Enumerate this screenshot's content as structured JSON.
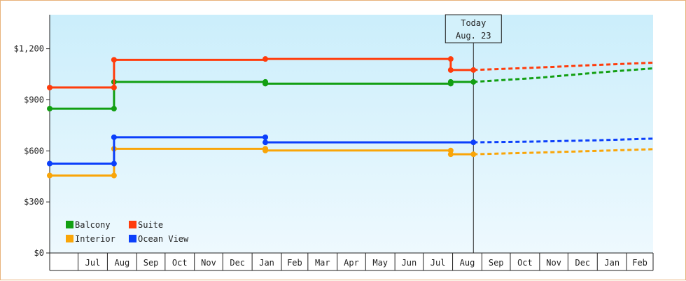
{
  "chart_data": {
    "type": "line",
    "title": "",
    "xlabel": "",
    "ylabel": "",
    "ylim": [
      0,
      1400
    ],
    "yticks": [
      0,
      300,
      600,
      900,
      1200
    ],
    "ytick_labels": [
      "$0",
      "$300",
      "$600",
      "$900",
      "$1,200"
    ],
    "x_axis_start": "2022-06-01",
    "x_axis_end": "2024-02-29",
    "x_tick_labels": [
      "Jul",
      "Aug",
      "Sep",
      "Oct",
      "Nov",
      "Dec",
      "Jan",
      "Feb",
      "Mar",
      "Apr",
      "May",
      "Jun",
      "Jul",
      "Aug",
      "Sep",
      "Oct",
      "Nov",
      "Dec",
      "Jan",
      "Feb"
    ],
    "today": {
      "date": "2023-08-23",
      "line1": "Today",
      "line2": "Aug. 23"
    },
    "legend": {
      "position": "bottom-left"
    },
    "background_gradient": [
      "#cbeefb",
      "#eef9fe"
    ],
    "series": [
      {
        "name": "Balcony",
        "color": "#129f12",
        "points": [
          [
            "2022-06-01",
            848
          ],
          [
            "2022-08-08",
            848
          ],
          [
            "2022-08-08",
            1005
          ],
          [
            "2023-01-15",
            1005
          ],
          [
            "2023-01-15",
            995
          ],
          [
            "2023-07-30",
            995
          ],
          [
            "2023-07-30",
            1005
          ],
          [
            "2023-08-23",
            1005
          ]
        ],
        "markers": [
          [
            "2022-06-01",
            848
          ],
          [
            "2022-08-08",
            848
          ],
          [
            "2022-08-08",
            1005
          ],
          [
            "2023-01-15",
            1005
          ],
          [
            "2023-01-15",
            995
          ],
          [
            "2023-07-30",
            995
          ],
          [
            "2023-07-30",
            1005
          ],
          [
            "2023-08-23",
            1005
          ]
        ],
        "forecast": [
          [
            "2023-08-23",
            1005
          ],
          [
            "2023-11-01",
            1030
          ],
          [
            "2024-01-01",
            1060
          ],
          [
            "2024-02-29",
            1085
          ]
        ]
      },
      {
        "name": "Suite",
        "color": "#ff3c0c",
        "points": [
          [
            "2022-06-01",
            972
          ],
          [
            "2022-08-08",
            972
          ],
          [
            "2022-08-08",
            1135
          ],
          [
            "2023-01-15",
            1135
          ],
          [
            "2023-01-15",
            1140
          ],
          [
            "2023-07-30",
            1140
          ],
          [
            "2023-07-30",
            1075
          ],
          [
            "2023-08-23",
            1075
          ]
        ],
        "markers": [
          [
            "2022-06-01",
            972
          ],
          [
            "2022-08-08",
            972
          ],
          [
            "2022-08-08",
            1135
          ],
          [
            "2023-01-15",
            1140
          ],
          [
            "2023-07-30",
            1140
          ],
          [
            "2023-07-30",
            1075
          ],
          [
            "2023-08-23",
            1075
          ]
        ],
        "forecast": [
          [
            "2023-08-23",
            1075
          ],
          [
            "2023-11-01",
            1090
          ],
          [
            "2024-01-01",
            1105
          ],
          [
            "2024-02-29",
            1118
          ]
        ]
      },
      {
        "name": "Interior",
        "color": "#f9a508",
        "points": [
          [
            "2022-06-01",
            455
          ],
          [
            "2022-08-08",
            455
          ],
          [
            "2022-08-08",
            612
          ],
          [
            "2023-01-15",
            612
          ],
          [
            "2023-01-15",
            602
          ],
          [
            "2023-07-30",
            602
          ],
          [
            "2023-07-30",
            580
          ],
          [
            "2023-08-23",
            580
          ]
        ],
        "markers": [
          [
            "2022-06-01",
            455
          ],
          [
            "2022-08-08",
            455
          ],
          [
            "2022-08-08",
            612
          ],
          [
            "2023-01-15",
            612
          ],
          [
            "2023-01-15",
            602
          ],
          [
            "2023-07-30",
            602
          ],
          [
            "2023-07-30",
            580
          ],
          [
            "2023-08-23",
            580
          ]
        ],
        "forecast": [
          [
            "2023-08-23",
            580
          ],
          [
            "2023-11-01",
            590
          ],
          [
            "2024-01-01",
            600
          ],
          [
            "2024-02-29",
            610
          ]
        ]
      },
      {
        "name": "Ocean View",
        "color": "#0b3ffb",
        "points": [
          [
            "2022-06-01",
            525
          ],
          [
            "2022-08-08",
            525
          ],
          [
            "2022-08-08",
            680
          ],
          [
            "2023-01-15",
            680
          ],
          [
            "2023-01-15",
            650
          ],
          [
            "2023-08-23",
            650
          ]
        ],
        "markers": [
          [
            "2022-06-01",
            525
          ],
          [
            "2022-08-08",
            525
          ],
          [
            "2022-08-08",
            680
          ],
          [
            "2023-01-15",
            680
          ],
          [
            "2023-01-15",
            650
          ],
          [
            "2023-08-23",
            650
          ]
        ],
        "forecast": [
          [
            "2023-08-23",
            650
          ],
          [
            "2023-11-01",
            655
          ],
          [
            "2024-01-01",
            662
          ],
          [
            "2024-02-29",
            672
          ]
        ]
      }
    ]
  }
}
